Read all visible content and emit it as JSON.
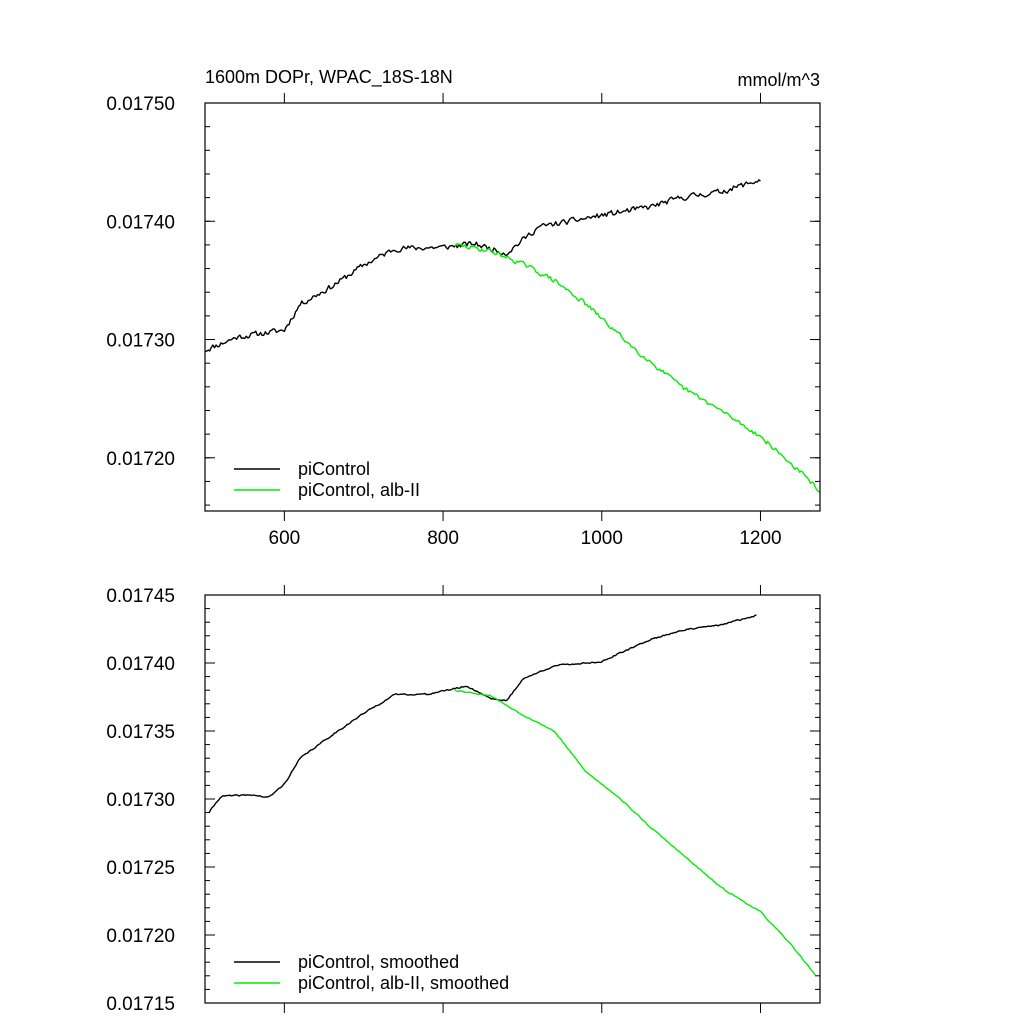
{
  "chart_data": [
    {
      "type": "line",
      "title_left": "1600m DOPr, WPAC_18S-18N",
      "title_right": "mmol/m^3",
      "xlim": [
        500,
        1275
      ],
      "ylim": [
        0.017155,
        0.0175
      ],
      "x_ticks": [
        600,
        800,
        1000,
        1200
      ],
      "x_tick_labels": [
        "600",
        "800",
        "1000",
        "1200"
      ],
      "y_ticks": [
        0.0172,
        0.0173,
        0.0174,
        0.0175
      ],
      "y_tick_labels": [
        "0.01720",
        "0.01730",
        "0.01740",
        "0.01750"
      ],
      "legend": [
        "piControl",
        "piControl, alb-II"
      ],
      "legend_position": "bottom-left",
      "series": [
        {
          "name": "piControl",
          "color": "#000000",
          "noise": 2.2e-06,
          "x_start": 500,
          "x_end": 1200,
          "x_step": 2,
          "seed": 11,
          "anchors": [
            [
              500,
              0.017291
            ],
            [
              540,
              0.017302
            ],
            [
              600,
              0.017308
            ],
            [
              620,
              0.01733
            ],
            [
              660,
              0.017345
            ],
            [
              700,
              0.017363
            ],
            [
              740,
              0.017377
            ],
            [
              800,
              0.017378
            ],
            [
              840,
              0.017381
            ],
            [
              880,
              0.017373
            ],
            [
              920,
              0.017395
            ],
            [
              1000,
              0.017405
            ],
            [
              1060,
              0.017412
            ],
            [
              1100,
              0.01742
            ],
            [
              1150,
              0.017425
            ],
            [
              1200,
              0.017435
            ]
          ]
        },
        {
          "name": "piControl, alb-II",
          "color": "#00ee00",
          "noise": 1.8e-06,
          "x_start": 815,
          "x_end": 1275,
          "x_step": 2,
          "seed": 29,
          "anchors": [
            [
              815,
              0.01738
            ],
            [
              860,
              0.017375
            ],
            [
              900,
              0.017364
            ],
            [
              940,
              0.01735
            ],
            [
              980,
              0.01733
            ],
            [
              1040,
              0.017293
            ],
            [
              1100,
              0.01726
            ],
            [
              1150,
              0.01724
            ],
            [
              1200,
              0.017218
            ],
            [
              1250,
              0.017188
            ],
            [
              1275,
              0.017172
            ]
          ]
        }
      ]
    },
    {
      "type": "line",
      "xlim": [
        500,
        1275
      ],
      "ylim": [
        0.01715,
        0.01745
      ],
      "x_ticks": [
        600,
        800,
        1000,
        1200
      ],
      "x_tick_labels": [],
      "y_ticks": [
        0.01715,
        0.0172,
        0.01725,
        0.0173,
        0.01735,
        0.0174,
        0.01745
      ],
      "y_tick_labels": [
        "0.01715",
        "0.01720",
        "0.01725",
        "0.01730",
        "0.01735",
        "0.01740",
        "0.01745"
      ],
      "legend": [
        "piControl, smoothed",
        "piControl, alb-II, smoothed"
      ],
      "legend_position": "bottom-left",
      "series": [
        {
          "name": "piControl, smoothed",
          "color": "#000000",
          "noise": 5e-07,
          "x_start": 505,
          "x_end": 1195,
          "x_step": 2,
          "seed": 41,
          "anchors": [
            [
              505,
              0.01729
            ],
            [
              520,
              0.017302
            ],
            [
              560,
              0.017303
            ],
            [
              580,
              0.017301
            ],
            [
              600,
              0.017311
            ],
            [
              620,
              0.01733
            ],
            [
              660,
              0.017347
            ],
            [
              700,
              0.017363
            ],
            [
              740,
              0.017377
            ],
            [
              780,
              0.017377
            ],
            [
              830,
              0.017383
            ],
            [
              860,
              0.017374
            ],
            [
              880,
              0.017372
            ],
            [
              900,
              0.017388
            ],
            [
              940,
              0.017398
            ],
            [
              1000,
              0.017401
            ],
            [
              1060,
              0.017417
            ],
            [
              1100,
              0.017424
            ],
            [
              1150,
              0.017428
            ],
            [
              1195,
              0.017435
            ]
          ]
        },
        {
          "name": "piControl, alb-II, smoothed",
          "color": "#00ee00",
          "noise": 4e-07,
          "x_start": 815,
          "x_end": 1270,
          "x_step": 2,
          "seed": 53,
          "anchors": [
            [
              815,
              0.01738
            ],
            [
              860,
              0.017376
            ],
            [
              900,
              0.017362
            ],
            [
              940,
              0.01735
            ],
            [
              980,
              0.01732
            ],
            [
              1020,
              0.017302
            ],
            [
              1060,
              0.01728
            ],
            [
              1100,
              0.01726
            ],
            [
              1150,
              0.017235
            ],
            [
              1200,
              0.017217
            ],
            [
              1240,
              0.017192
            ],
            [
              1270,
              0.01717
            ]
          ]
        }
      ]
    }
  ]
}
